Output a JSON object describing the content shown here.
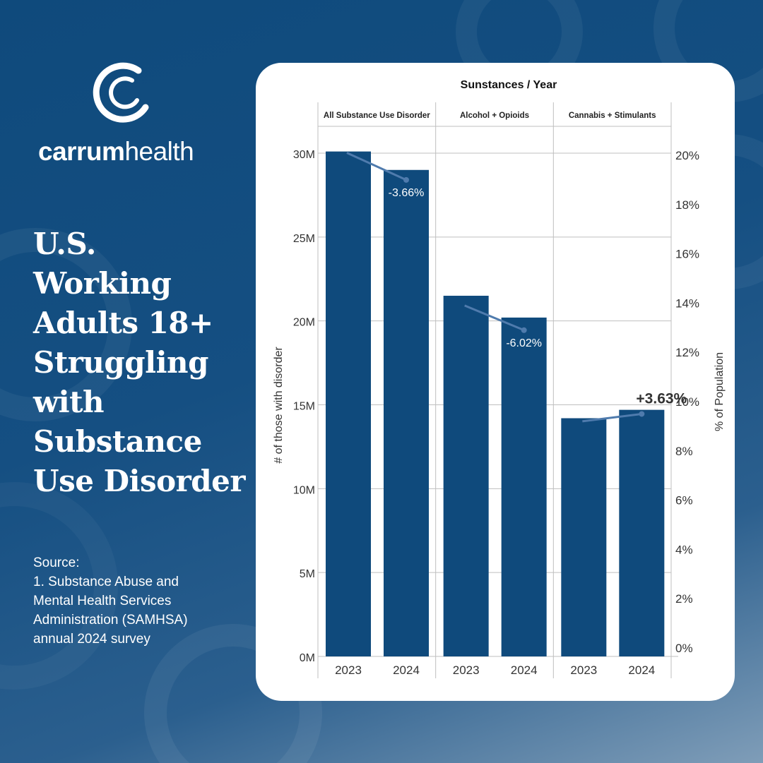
{
  "brand": {
    "name_bold": "carrum",
    "name_light": "health"
  },
  "headline": {
    "lines": [
      "U.S.",
      "Working",
      "Adults 18+",
      "Struggling",
      "with",
      "Substance",
      "Use Disorder"
    ]
  },
  "source": {
    "lines": [
      "Source:",
      "1. Substance Abuse and",
      "Mental Health Services",
      "Administration (SAMHSA)",
      "annual 2024 survey"
    ]
  },
  "colors": {
    "bar": "#0f4a7c",
    "trend_line": "#4f7bad",
    "background": "#154f82",
    "card": "#ffffff"
  },
  "chart_data": {
    "type": "bar",
    "title": "Sunstances / Year",
    "groups": [
      {
        "name": "All Substance Use Disorder",
        "categories": [
          "2023",
          "2024"
        ],
        "values": [
          30.1,
          29.0
        ],
        "pct_population": [
          20.1,
          19.0
        ],
        "change_label": "-3.66%",
        "change_emphasis": false
      },
      {
        "name": "Alcohol + Opioids",
        "categories": [
          "2023",
          "2024"
        ],
        "values": [
          21.5,
          20.2
        ],
        "pct_population": [
          13.9,
          12.9
        ],
        "change_label": "-6.02%",
        "change_emphasis": false
      },
      {
        "name": "Cannabis + Stimulants",
        "categories": [
          "2023",
          "2024"
        ],
        "values": [
          14.2,
          14.7
        ],
        "pct_population": [
          9.2,
          9.5
        ],
        "change_label": "+3.63%",
        "change_emphasis": true
      }
    ],
    "ylabel": "# of those with disorder",
    "ylim": [
      0,
      30
    ],
    "y_ticks": [
      {
        "value": 0,
        "label": "0M"
      },
      {
        "value": 5,
        "label": "5M"
      },
      {
        "value": 10,
        "label": "10M"
      },
      {
        "value": 15,
        "label": "15M"
      },
      {
        "value": 20,
        "label": "20M"
      },
      {
        "value": 25,
        "label": "25M"
      },
      {
        "value": 30,
        "label": "30M"
      }
    ],
    "y2label": "% of Population",
    "y2_ticks": [
      {
        "value": 0,
        "label": "0%"
      },
      {
        "value": 2,
        "label": "2%"
      },
      {
        "value": 4,
        "label": "4%"
      },
      {
        "value": 6,
        "label": "6%"
      },
      {
        "value": 8,
        "label": "8%"
      },
      {
        "value": 10,
        "label": "10%"
      },
      {
        "value": 12,
        "label": "12%"
      },
      {
        "value": 14,
        "label": "14%"
      },
      {
        "value": 16,
        "label": "16%"
      },
      {
        "value": 18,
        "label": "18%"
      },
      {
        "value": 20,
        "label": "20%"
      }
    ],
    "grid": true
  }
}
